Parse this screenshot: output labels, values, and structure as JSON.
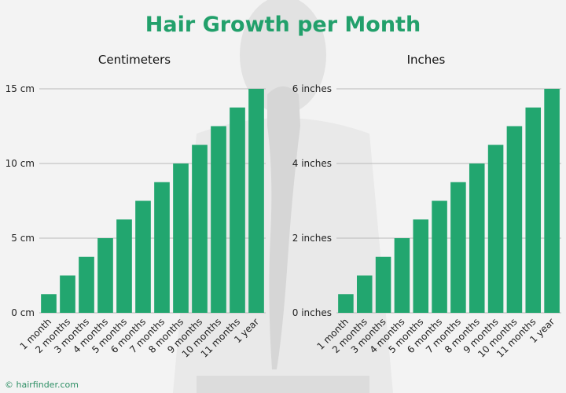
{
  "title": "Hair Growth per Month",
  "credit": "© hairfinder.com",
  "colors": {
    "bar": "#22a66f",
    "title": "#22a06b",
    "grid": "#b9b9b9"
  },
  "chart_data": [
    {
      "type": "bar",
      "title": "Centimeters",
      "categories": [
        "1 month",
        "2 months",
        "3 months",
        "4 months",
        "5 months",
        "6 months",
        "7 months",
        "8 months",
        "9 months",
        "10 months",
        "11 months",
        "1 year"
      ],
      "values": [
        1.25,
        2.5,
        3.75,
        5,
        6.25,
        7.5,
        8.75,
        10,
        11.25,
        12.5,
        13.75,
        15
      ],
      "ylim": [
        0,
        15
      ],
      "yticks": [
        0,
        5,
        10,
        15
      ],
      "ytick_labels": [
        "0 cm",
        "5 cm",
        "10 cm",
        "15 cm"
      ],
      "xlabel": "",
      "ylabel": "",
      "grid": true
    },
    {
      "type": "bar",
      "title": "Inches",
      "categories": [
        "1 month",
        "2 months",
        "3 months",
        "4 months",
        "5 months",
        "6 months",
        "7 months",
        "8 months",
        "9 months",
        "10 months",
        "11 months",
        "1 year"
      ],
      "values": [
        0.5,
        1,
        1.5,
        2,
        2.5,
        3,
        3.5,
        4,
        4.5,
        5,
        5.5,
        6
      ],
      "ylim": [
        0,
        6
      ],
      "yticks": [
        0,
        2,
        4,
        6
      ],
      "ytick_labels": [
        "0 inches",
        "2 inches",
        "4 inches",
        "6 inches"
      ],
      "xlabel": "",
      "ylabel": "",
      "grid": true
    }
  ]
}
